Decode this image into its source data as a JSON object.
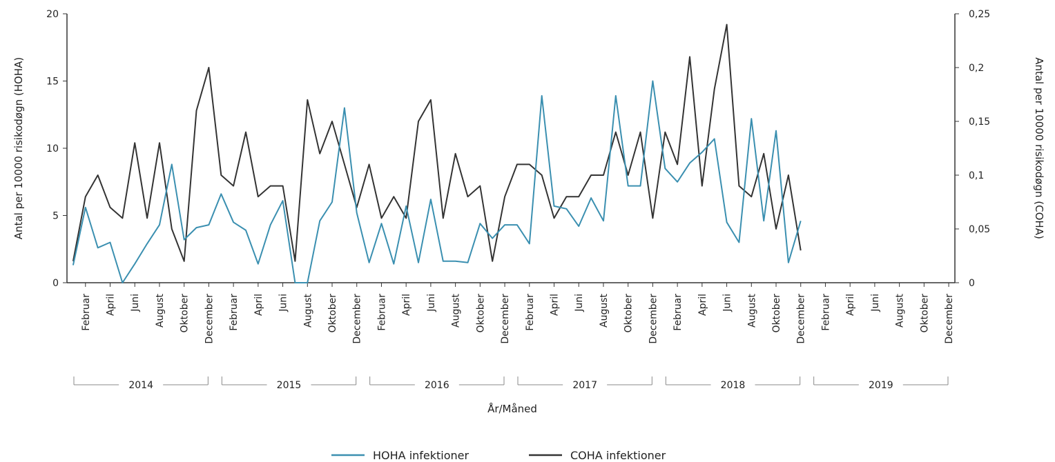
{
  "chart_data": {
    "type": "line",
    "xlabel": "År/Måned",
    "ylabel_left": "Antal per 10000 risikodøgn (HOHA)",
    "ylabel_right": "Antal per 10000 risikodøgn (COHA)",
    "ylim_left": [
      0,
      20
    ],
    "ylim_right": [
      0,
      0.25
    ],
    "yticks_left": [
      "0",
      "5",
      "10",
      "15",
      "20"
    ],
    "yticks_right": [
      "0",
      "0,05",
      "0,1",
      "0,15",
      "0,2",
      "0,25"
    ],
    "years": [
      "2014",
      "2015",
      "2016",
      "2017",
      "2018",
      "2019"
    ],
    "month_tick_labels": [
      "Februar",
      "April",
      "Juni",
      "August",
      "Oktober",
      "December"
    ],
    "legend_position": "bottom",
    "series": [
      {
        "name": "HOHA infektioner",
        "axis": "left",
        "color": "#3a8fb0",
        "values": [
          1.3,
          5.6,
          2.6,
          3.0,
          0.0,
          1.4,
          2.9,
          4.3,
          8.8,
          3.2,
          4.1,
          4.3,
          6.6,
          4.5,
          3.9,
          1.4,
          4.3,
          6.1,
          0.0,
          0.0,
          4.6,
          6.0,
          13.0,
          5.2,
          1.5,
          4.4,
          1.4,
          5.7,
          1.5,
          6.2,
          1.6,
          1.6,
          1.5,
          4.4,
          3.3,
          4.3,
          4.3,
          2.9,
          13.9,
          5.7,
          5.5,
          4.2,
          6.3,
          4.6,
          13.9,
          7.2,
          7.2,
          15.0,
          8.5,
          7.5,
          8.9,
          9.7,
          10.7,
          4.5,
          3.0,
          12.2,
          4.6,
          11.3,
          1.5,
          4.6
        ]
      },
      {
        "name": "COHA infektioner",
        "axis": "right",
        "color": "#333333",
        "values": [
          0.02,
          0.08,
          0.1,
          0.07,
          0.06,
          0.13,
          0.06,
          0.13,
          0.05,
          0.02,
          0.16,
          0.2,
          0.1,
          0.09,
          0.14,
          0.08,
          0.09,
          0.09,
          0.02,
          0.17,
          0.12,
          0.15,
          0.11,
          0.07,
          0.11,
          0.06,
          0.08,
          0.06,
          0.15,
          0.17,
          0.06,
          0.12,
          0.08,
          0.09,
          0.02,
          0.08,
          0.11,
          0.11,
          0.1,
          0.06,
          0.08,
          0.08,
          0.1,
          0.1,
          0.14,
          0.1,
          0.14,
          0.06,
          0.14,
          0.11,
          0.21,
          0.09,
          0.18,
          0.24,
          0.09,
          0.08,
          0.12,
          0.05,
          0.1,
          0.03
        ]
      }
    ]
  }
}
